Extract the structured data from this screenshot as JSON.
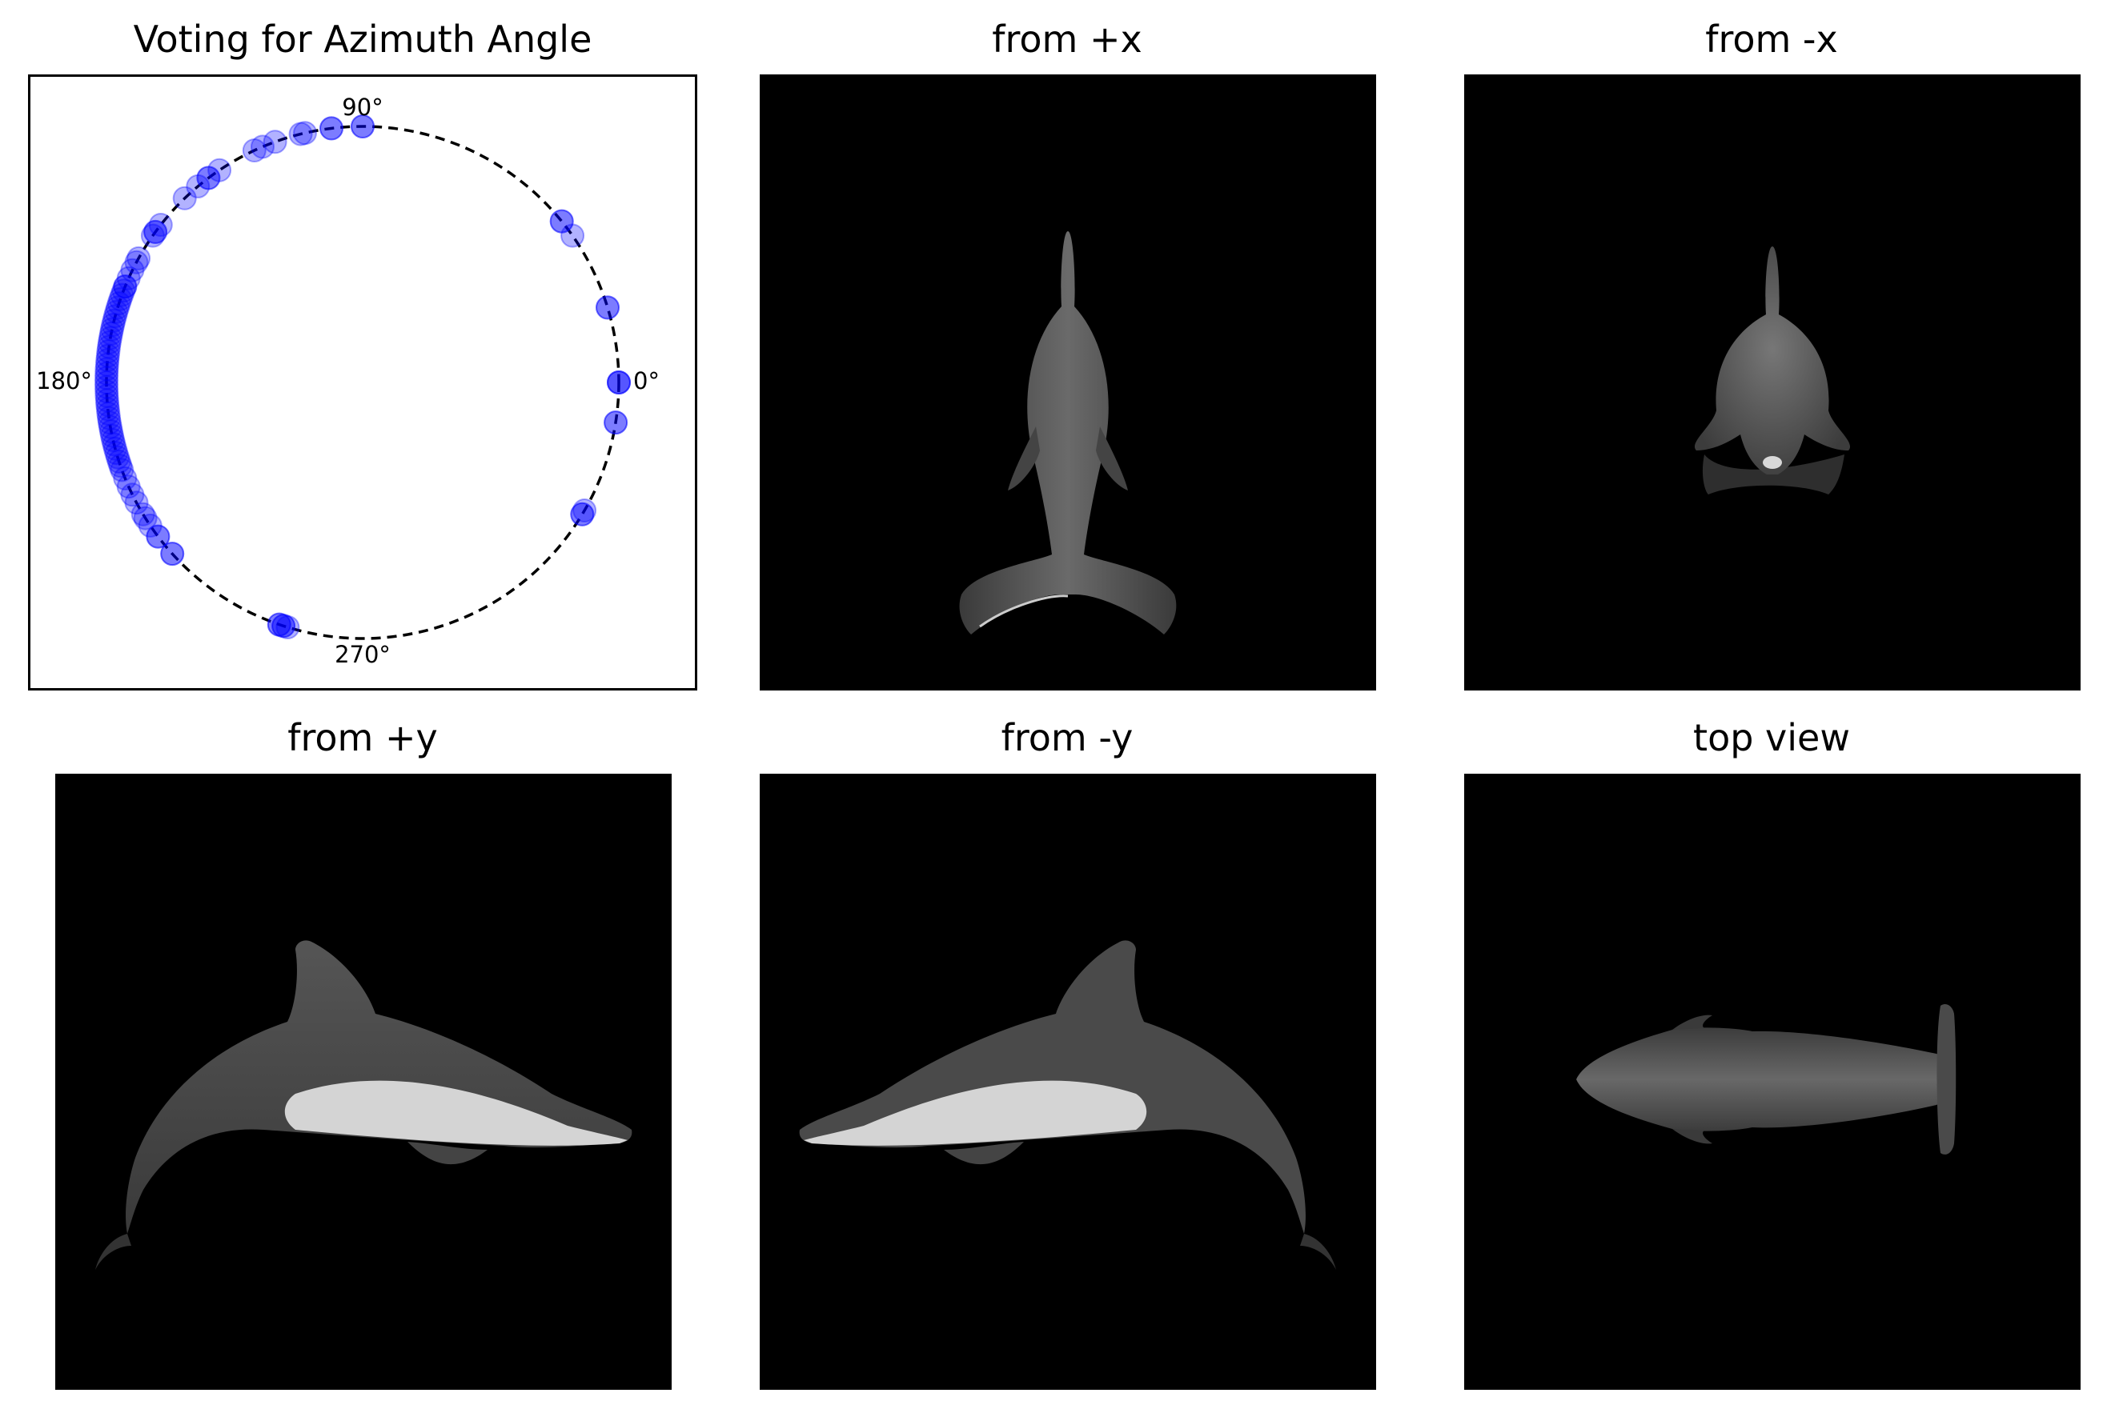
{
  "titles": {
    "azimuth": "Voting for Azimuth Angle",
    "px": "from +x",
    "nx": "from -x",
    "py": "from +y",
    "ny": "from -y",
    "top": "top view"
  },
  "chart_data": {
    "type": "scatter",
    "title": "Voting for Azimuth Angle",
    "projection": "polar",
    "angle_ticks": [
      "0°",
      "90°",
      "180°",
      "270°"
    ],
    "angle_ticks_deg": [
      0,
      90,
      180,
      270
    ],
    "radius": 1,
    "circle_style": "dashed",
    "grid": false,
    "marker_color": "#0000ff",
    "votes_deg": [
      0,
      0,
      0,
      351,
      351,
      330,
      329,
      329,
      17,
      17,
      35,
      39,
      39,
      90,
      90,
      97,
      97,
      103,
      104,
      124,
      127,
      127,
      130,
      134,
      142,
      144,
      144,
      145,
      151,
      152,
      154,
      156,
      158,
      158,
      159,
      160,
      161,
      162,
      163,
      164,
      165,
      166,
      167,
      168,
      169,
      170,
      171,
      172,
      173,
      174,
      175,
      176,
      177,
      178,
      179,
      180,
      181,
      182,
      183,
      184,
      185,
      186,
      187,
      188,
      189,
      190,
      191,
      192,
      193,
      194,
      195,
      196,
      197,
      198,
      199,
      200,
      202,
      204,
      206,
      208,
      211,
      212,
      214,
      217,
      217,
      222,
      222,
      251,
      252,
      251,
      252,
      253,
      110,
      113,
      115
    ]
  },
  "views": [
    {
      "name": "from +x",
      "icon": "dolphin-rear-view-icon"
    },
    {
      "name": "from -x",
      "icon": "dolphin-front-view-icon"
    },
    {
      "name": "from +y",
      "icon": "dolphin-side-view-right-facing-icon"
    },
    {
      "name": "from -y",
      "icon": "dolphin-side-view-left-facing-icon"
    },
    {
      "name": "top view",
      "icon": "dolphin-top-view-icon"
    }
  ]
}
